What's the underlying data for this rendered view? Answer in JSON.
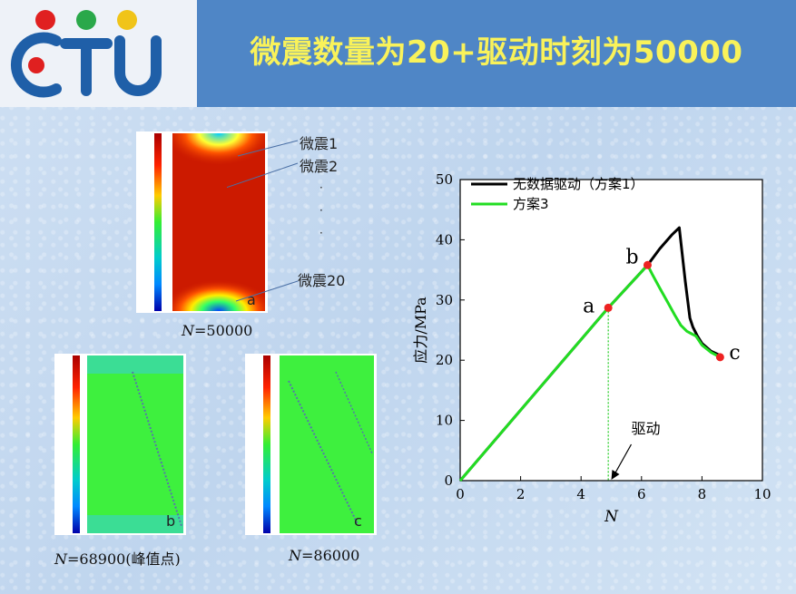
{
  "header": {
    "title": "微震数量为20+驱动时刻为50000"
  },
  "panels": {
    "main": {
      "caption_var": "N",
      "caption_value": "=50000",
      "corner_label": "a",
      "annotations": [
        "微震1",
        "微震2",
        "·",
        "·",
        "·",
        "微震20"
      ]
    },
    "b": {
      "caption_var": "N",
      "caption_value": "=68900(峰值点)",
      "corner_label": "b"
    },
    "c": {
      "caption_var": "N",
      "caption_value": "=86000",
      "corner_label": "c"
    }
  },
  "colors": {
    "black_series": "#000000",
    "green_series": "#22dd22",
    "point": "#ee2222",
    "header_bg": "#4f86c6",
    "title": "#f9f25a"
  },
  "chart_data": {
    "type": "line",
    "xlabel": "N",
    "ylabel": "应力/MPa",
    "xlim": [
      0,
      10
    ],
    "ylim": [
      0,
      50
    ],
    "xticks": [
      0,
      2,
      4,
      6,
      8,
      10
    ],
    "yticks": [
      0,
      10,
      20,
      30,
      40,
      50
    ],
    "legend_position": "top-left",
    "series": [
      {
        "name": "无数据驱动（方案1）",
        "color": "#000000",
        "points": [
          [
            0,
            0
          ],
          [
            4.9,
            28.7
          ],
          [
            6.2,
            35.8
          ],
          [
            6.6,
            38.5
          ],
          [
            7.0,
            40.8
          ],
          [
            7.25,
            42.0
          ],
          [
            7.45,
            33.0
          ],
          [
            7.6,
            27.0
          ],
          [
            7.7,
            25.5
          ],
          [
            7.85,
            24.0
          ],
          [
            8.0,
            22.8
          ],
          [
            8.3,
            21.5
          ],
          [
            8.6,
            20.8
          ]
        ]
      },
      {
        "name": "方案3",
        "color": "#22dd22",
        "points": [
          [
            0,
            0
          ],
          [
            4.9,
            28.7
          ],
          [
            6.2,
            35.8
          ],
          [
            6.35,
            34.3
          ],
          [
            6.6,
            32.0
          ],
          [
            6.9,
            29.3
          ],
          [
            7.1,
            27.5
          ],
          [
            7.3,
            25.8
          ],
          [
            7.5,
            24.8
          ],
          [
            7.8,
            24.0
          ],
          [
            8.0,
            22.5
          ],
          [
            8.3,
            21.3
          ],
          [
            8.6,
            20.5
          ]
        ]
      }
    ],
    "points": [
      {
        "label": "a",
        "x": 4.9,
        "y": 28.7
      },
      {
        "label": "b",
        "x": 6.2,
        "y": 35.8
      },
      {
        "label": "c",
        "x": 8.6,
        "y": 20.5
      }
    ],
    "annotation": {
      "text": "驱动",
      "x": 5.0,
      "y": 0
    }
  }
}
